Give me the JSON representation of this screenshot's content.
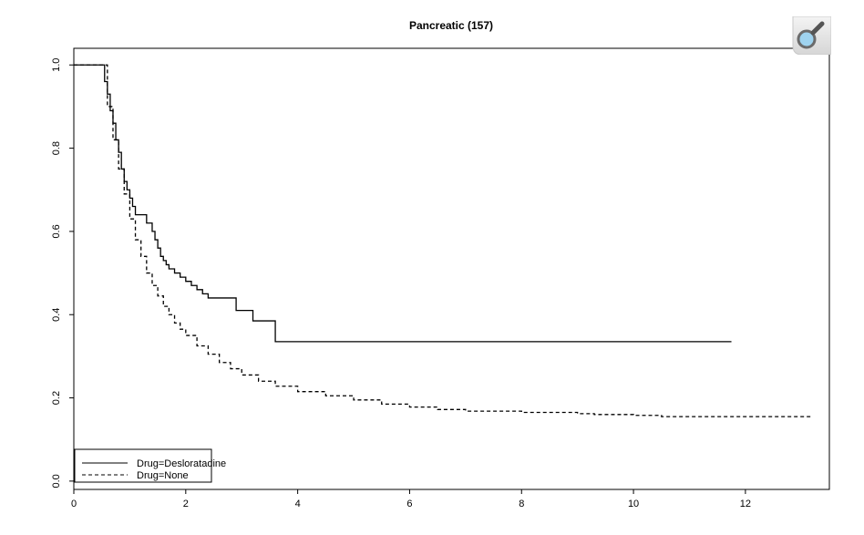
{
  "zoom_icon": "magnifier-icon",
  "chart_data": {
    "type": "line",
    "title": "Pancreatic (157)",
    "xlabel": "",
    "ylabel": "",
    "xlim": [
      0,
      13.5
    ],
    "ylim": [
      -0.02,
      1.04
    ],
    "x_ticks": [
      0,
      2,
      4,
      6,
      8,
      10,
      12
    ],
    "x_tick_labels": [
      "0",
      "2",
      "4",
      "6",
      "8",
      "10",
      "12"
    ],
    "y_ticks": [
      0.0,
      0.2,
      0.4,
      0.6,
      0.8,
      1.0
    ],
    "y_tick_labels": [
      "0.0",
      "0.2",
      "0.4",
      "0.6",
      "0.8",
      "1.0"
    ],
    "grid": false,
    "legend_position": "bottom-left",
    "series": [
      {
        "name": "Drug=Desloratadine",
        "style": "solid",
        "color": "#000000",
        "x": [
          0,
          0.5,
          0.55,
          0.6,
          0.65,
          0.7,
          0.75,
          0.8,
          0.85,
          0.9,
          0.95,
          1.0,
          1.05,
          1.1,
          1.15,
          1.2,
          1.3,
          1.4,
          1.45,
          1.5,
          1.55,
          1.6,
          1.65,
          1.7,
          1.75,
          1.8,
          1.9,
          2.0,
          2.1,
          2.2,
          2.3,
          2.4,
          2.55,
          2.6,
          2.9,
          3.0,
          3.15,
          3.2,
          3.55,
          3.6,
          11.75
        ],
        "y": [
          1.0,
          1.0,
          0.96,
          0.93,
          0.89,
          0.86,
          0.82,
          0.79,
          0.75,
          0.72,
          0.7,
          0.68,
          0.66,
          0.64,
          0.64,
          0.64,
          0.62,
          0.6,
          0.58,
          0.56,
          0.54,
          0.53,
          0.52,
          0.51,
          0.51,
          0.5,
          0.49,
          0.48,
          0.47,
          0.46,
          0.45,
          0.44,
          0.44,
          0.44,
          0.41,
          0.41,
          0.41,
          0.385,
          0.385,
          0.335,
          0.335
        ]
      },
      {
        "name": "Drug=None",
        "style": "dashed",
        "color": "#000000",
        "x": [
          0,
          0.5,
          0.6,
          0.7,
          0.8,
          0.9,
          1.0,
          1.1,
          1.2,
          1.3,
          1.4,
          1.5,
          1.6,
          1.7,
          1.8,
          1.9,
          2.0,
          2.2,
          2.4,
          2.6,
          2.8,
          3.0,
          3.3,
          3.6,
          4.0,
          4.5,
          5.0,
          5.5,
          6.0,
          6.5,
          7.0,
          8.0,
          9.0,
          9.3,
          10.0,
          10.5,
          11.0,
          12.0,
          13.15
        ],
        "y": [
          1.0,
          1.0,
          0.9,
          0.82,
          0.75,
          0.69,
          0.63,
          0.58,
          0.54,
          0.5,
          0.47,
          0.445,
          0.42,
          0.4,
          0.38,
          0.365,
          0.35,
          0.325,
          0.305,
          0.285,
          0.27,
          0.255,
          0.24,
          0.228,
          0.215,
          0.205,
          0.195,
          0.185,
          0.178,
          0.172,
          0.168,
          0.165,
          0.162,
          0.16,
          0.158,
          0.155,
          0.155,
          0.155,
          0.153
        ]
      }
    ]
  }
}
